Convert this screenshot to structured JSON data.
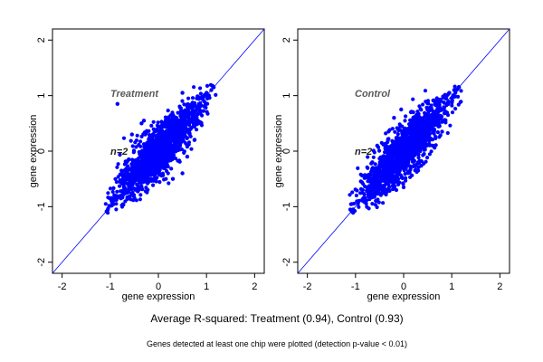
{
  "chart_data": [
    {
      "type": "scatter",
      "label": "Treatment",
      "n_label": "n=2",
      "xlabel": "gene expression",
      "ylabel": "gene expression",
      "xlim": [
        -2.2,
        2.2
      ],
      "ylim": [
        -2.2,
        2.2
      ],
      "xticks": [
        -2,
        -1,
        0,
        1,
        2
      ],
      "yticks": [
        -2,
        -1,
        0,
        1,
        2
      ],
      "reference_line": "y = x",
      "point_color": "#0000ff",
      "line_color": "#0000ff",
      "points_summary": "dense elliptical cloud along y=x from about (-1.1,-1.1) to (1.2,1.2)",
      "points": [
        [
          -1.05,
          -1.05
        ],
        [
          -0.95,
          -0.9
        ],
        [
          -0.9,
          -0.8
        ],
        [
          -0.8,
          -0.55
        ],
        [
          -0.7,
          -0.75
        ],
        [
          -0.65,
          -0.45
        ],
        [
          -0.6,
          -0.6
        ],
        [
          -0.55,
          -0.3
        ],
        [
          -0.5,
          -0.55
        ],
        [
          -0.45,
          -0.2
        ],
        [
          -0.4,
          -0.4
        ],
        [
          -0.35,
          -0.1
        ],
        [
          -0.3,
          -0.45
        ],
        [
          -0.25,
          0.05
        ],
        [
          -0.2,
          -0.2
        ],
        [
          -0.15,
          0.1
        ],
        [
          -0.1,
          -0.25
        ],
        [
          -0.05,
          0.15
        ],
        [
          0.0,
          0.0
        ],
        [
          0.05,
          -0.2
        ],
        [
          0.1,
          0.2
        ],
        [
          0.15,
          0.0
        ],
        [
          0.2,
          0.35
        ],
        [
          0.25,
          0.1
        ],
        [
          0.3,
          0.45
        ],
        [
          0.35,
          0.2
        ],
        [
          0.4,
          0.55
        ],
        [
          0.45,
          0.3
        ],
        [
          0.5,
          0.6
        ],
        [
          0.55,
          0.4
        ],
        [
          0.6,
          0.75
        ],
        [
          0.65,
          0.55
        ],
        [
          0.7,
          0.85
        ],
        [
          0.75,
          0.65
        ],
        [
          0.8,
          0.95
        ],
        [
          0.85,
          0.8
        ],
        [
          0.9,
          0.95
        ],
        [
          0.95,
          0.9
        ],
        [
          1.0,
          1.05
        ],
        [
          1.05,
          1.0
        ],
        [
          1.1,
          1.1
        ],
        [
          1.15,
          1.15
        ],
        [
          -0.85,
          0.85
        ],
        [
          -0.3,
          0.55
        ],
        [
          -0.55,
          0.3
        ],
        [
          0.5,
          1.05
        ],
        [
          0.85,
          0.7
        ],
        [
          0.3,
          -0.5
        ],
        [
          0.6,
          -0.1
        ],
        [
          -0.35,
          0.5
        ],
        [
          0.5,
          -0.4
        ],
        [
          0.15,
          0.55
        ],
        [
          -0.2,
          -0.55
        ],
        [
          0.05,
          0.45
        ],
        [
          0.75,
          0.2
        ]
      ]
    },
    {
      "type": "scatter",
      "label": "Control",
      "n_label": "n=2",
      "xlabel": "gene expression",
      "ylabel": "gene expression",
      "xlim": [
        -2.2,
        2.2
      ],
      "ylim": [
        -2.2,
        2.2
      ],
      "xticks": [
        -2,
        -1,
        0,
        1,
        2
      ],
      "yticks": [
        -2,
        -1,
        0,
        1,
        2
      ],
      "reference_line": "y = x",
      "point_color": "#0000ff",
      "line_color": "#0000ff",
      "points_summary": "dense elliptical cloud along y=x from about (-1.1,-1.1) to (1.2,1.2)",
      "points": [
        [
          -1.05,
          -1.05
        ],
        [
          -0.95,
          -0.95
        ],
        [
          -0.85,
          -0.7
        ],
        [
          -0.8,
          -0.85
        ],
        [
          -0.7,
          -0.5
        ],
        [
          -0.65,
          -0.7
        ],
        [
          -0.6,
          -0.4
        ],
        [
          -0.55,
          -0.6
        ],
        [
          -0.5,
          -0.25
        ],
        [
          -0.45,
          -0.5
        ],
        [
          -0.4,
          -0.15
        ],
        [
          -0.35,
          -0.4
        ],
        [
          -0.3,
          0.0
        ],
        [
          -0.25,
          -0.3
        ],
        [
          -0.2,
          0.1
        ],
        [
          -0.15,
          -0.2
        ],
        [
          -0.1,
          0.2
        ],
        [
          -0.05,
          -0.1
        ],
        [
          0.0,
          0.05
        ],
        [
          0.05,
          0.3
        ],
        [
          0.1,
          -0.1
        ],
        [
          0.15,
          0.4
        ],
        [
          0.2,
          0.05
        ],
        [
          0.25,
          0.45
        ],
        [
          0.3,
          0.15
        ],
        [
          0.35,
          0.55
        ],
        [
          0.4,
          0.3
        ],
        [
          0.45,
          0.65
        ],
        [
          0.5,
          0.4
        ],
        [
          0.55,
          0.75
        ],
        [
          0.6,
          0.5
        ],
        [
          0.65,
          0.85
        ],
        [
          0.7,
          0.65
        ],
        [
          0.75,
          0.9
        ],
        [
          0.8,
          0.75
        ],
        [
          0.85,
          1.0
        ],
        [
          0.9,
          0.85
        ],
        [
          0.95,
          1.05
        ],
        [
          1.0,
          0.95
        ],
        [
          1.05,
          1.1
        ],
        [
          1.1,
          1.1
        ],
        [
          1.15,
          1.15
        ],
        [
          -0.2,
          0.6
        ],
        [
          0.2,
          0.7
        ],
        [
          -0.05,
          0.75
        ],
        [
          0.0,
          -0.65
        ],
        [
          0.3,
          -0.35
        ],
        [
          0.6,
          0.1
        ],
        [
          -0.55,
          0.1
        ],
        [
          0.25,
          0.6
        ],
        [
          0.2,
          0.6
        ],
        [
          0.15,
          0.7
        ],
        [
          -0.65,
          -0.2
        ],
        [
          0.8,
          0.35
        ],
        [
          -0.3,
          -0.65
        ]
      ]
    }
  ],
  "footer": {
    "summary": "Average R-squared: Treatment (0.94), Control (0.93)",
    "note": "Genes detected at least one chip were plotted (detection p-value < 0.01)"
  }
}
